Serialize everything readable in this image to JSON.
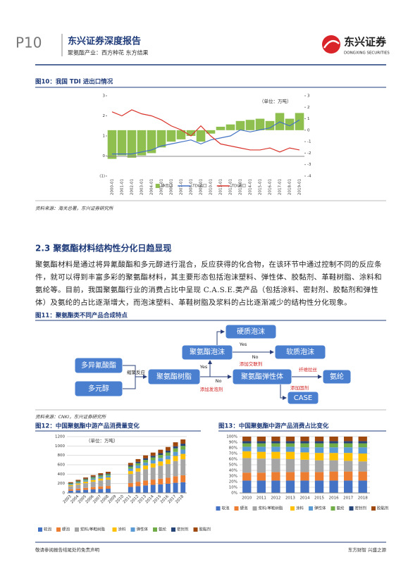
{
  "header": {
    "page": "P10",
    "title": "东兴证券深度报告",
    "subtitle": "聚氨酯产业：西方种花 东方结果",
    "logo": "东兴证券",
    "logo_en": "DONGXING SECURITIES"
  },
  "figure10": {
    "title": "图10：我国 TDI 进出口情况",
    "source": "资料来源：海关总署，东兴证券研究所"
  },
  "section": {
    "heading": "2.3 聚氨酯材料结构性分化日趋显现",
    "paragraph": "聚氨酯材料是通过将异氰酸酯和多元醇进行混合，反应获得的化合物，在该环节中通过控制不同的反应条件，就可以得到丰富多彩的聚氨酯材料，其主要形态包括泡沫塑料、弹性体、胶黏剂、革鞋树脂、涂料和氨纶等。目前，我国聚氨酯行业的消费占比中呈现 C.A.S.E.类产品（包括涂料、密封剂、胶黏剂和弹性体）及氨纶的占比逐渐增大，而泡沫塑料、革鞋树脂及浆料的占比逐渐减少的结构性分化现象。"
  },
  "figure11": {
    "title": "图11：聚氨酯类不同产品合成特点",
    "source": "资料来源：CNKI，东兴证券研究所",
    "nodes": [
      "多异氰酸酯",
      "多元醇",
      "聚氨酯树脂",
      "聚氨酯泡沫",
      "硬质泡沫",
      "软质泡沫",
      "聚氨酯弹性体",
      "氨纶",
      "CASE"
    ],
    "edges": [
      "缩聚反应",
      "Yes",
      "No",
      "Yes",
      "No",
      "添加交联剂",
      "添加发泡剂",
      "纤维拉丝",
      "添加固剂"
    ]
  },
  "figure12": {
    "title": "图12：中国聚氨酯中游产品消费量变化"
  },
  "figure13": {
    "title": "图13：中国聚氨酯中游产品消费占比变化"
  },
  "footer": {
    "left": "敬请参阅报告结尾处的免责声明",
    "right": "东方财智 兴盛之源"
  },
  "chart_data": [
    {
      "type": "line",
      "annotation": "（单位：万吨）",
      "categories": [
        "2000-01",
        "2001-01",
        "2002-01",
        "2003-01",
        "2004-01",
        "2005-01",
        "2006-01",
        "2007-01",
        "2008-01",
        "2009-01",
        "2010-01",
        "2011-01",
        "2012-01",
        "2013-01",
        "2014-01",
        "2015-01",
        "2016-01",
        "2017-01",
        "2018-01",
        "2019-01"
      ],
      "ylim": [
        -1,
        3
      ],
      "yticks": [
        {
          "value": -1,
          "label": "(1)"
        },
        0,
        1,
        2,
        3
      ],
      "y2lim": [
        -4,
        3
      ],
      "y2ticks": [
        3,
        2,
        1,
        0,
        -1,
        -2,
        -3,
        -4
      ],
      "legend": "bottom",
      "series": [
        {
          "name": "净出口",
          "type": "bar",
          "axis": "y2",
          "color": "#8fbf4f",
          "values": [
            -2.5,
            -2.2,
            -2.4,
            -2.2,
            -2.0,
            -1.5,
            -1.0,
            -0.8,
            -0.5,
            -1.0,
            -0.3,
            0.3,
            0.5,
            0.8,
            0.9,
            1.0,
            0.8,
            1.5,
            1.0,
            1.5
          ]
        },
        {
          "name": "TDI出口",
          "type": "line",
          "color": "#4472c4",
          "values": [
            0.1,
            0.1,
            0.1,
            0.2,
            0.3,
            0.5,
            0.6,
            0.7,
            0.8,
            0.6,
            0.8,
            0.9,
            1.0,
            1.3,
            1.2,
            1.3,
            1.4,
            1.7,
            1.5,
            1.8
          ]
        },
        {
          "name": "TDI进口",
          "type": "line",
          "color": "#d9342b",
          "values": [
            2.2,
            2.0,
            2.3,
            2.1,
            2.0,
            1.8,
            1.5,
            1.3,
            1.0,
            1.5,
            1.0,
            0.6,
            0.5,
            0.4,
            0.3,
            0.3,
            0.4,
            0.2,
            0.4,
            0.3
          ]
        }
      ]
    },
    {
      "type": "bar",
      "stacked": true,
      "annotation": "（单位：万吨）",
      "legend": "bottom",
      "categories": [
        "2003",
        "2004",
        "2005",
        "2006",
        "2007",
        "2008",
        "2009",
        "2010",
        "2011",
        "2012",
        "2013",
        "2014",
        "2015",
        "2016",
        "2017",
        "2018"
      ],
      "ylim": [
        0,
        1200
      ],
      "yticks": [
        0,
        200,
        400,
        600,
        800,
        1000,
        1200
      ],
      "grid": true,
      "series": [
        {
          "name": "软泡",
          "color": "#4472c4",
          "values": [
            46,
            56,
            66,
            76,
            84,
            90,
            null,
            null,
            128,
            144,
            160,
            172,
            184,
            196,
            216,
            228
          ]
        },
        {
          "name": "硬泡",
          "color": "#ed7d31",
          "values": [
            30,
            36,
            43,
            49,
            55,
            59,
            null,
            null,
            83,
            94,
            104,
            112,
            120,
            127,
            140,
            148
          ]
        },
        {
          "name": "浆料/革鞋树脂",
          "color": "#a5a5a5",
          "values": [
            69,
            84,
            99,
            114,
            126,
            135,
            null,
            null,
            192,
            216,
            240,
            258,
            276,
            294,
            324,
            342
          ]
        },
        {
          "name": "涂料",
          "color": "#ffc000",
          "values": [
            23,
            28,
            33,
            38,
            42,
            45,
            null,
            null,
            64,
            72,
            80,
            86,
            92,
            98,
            108,
            114
          ]
        },
        {
          "name": "弹性体",
          "color": "#5b9bd5",
          "values": [
            18,
            22,
            26,
            30,
            34,
            36,
            null,
            null,
            51,
            58,
            64,
            69,
            74,
            78,
            86,
            91
          ]
        },
        {
          "name": "氨纶",
          "color": "#70ad47",
          "values": [
            16,
            20,
            23,
            27,
            29,
            32,
            null,
            null,
            45,
            50,
            56,
            60,
            64,
            69,
            76,
            80
          ]
        },
        {
          "name": "密封剂",
          "color": "#264478",
          "values": [
            9,
            11,
            13,
            15,
            17,
            18,
            null,
            null,
            26,
            29,
            32,
            34,
            37,
            39,
            43,
            46
          ]
        },
        {
          "name": "胶黏剂",
          "color": "#9e480e",
          "values": [
            18,
            22,
            26,
            30,
            34,
            36,
            null,
            null,
            51,
            58,
            64,
            69,
            74,
            78,
            86,
            91
          ]
        }
      ]
    },
    {
      "type": "bar",
      "stacked": true,
      "legend": "bottom",
      "grid": true,
      "categories": [
        "2010",
        "2011",
        "2012",
        "2013",
        "2014",
        "2015",
        "2016",
        "2017",
        "2018"
      ],
      "ylim": [
        0,
        100
      ],
      "yticks": [
        {
          "value": 0,
          "label": "0%"
        },
        {
          "value": 10,
          "label": "10%"
        },
        {
          "value": 20,
          "label": "20%"
        },
        {
          "value": 30,
          "label": "30%"
        },
        {
          "value": 40,
          "label": "40%"
        },
        {
          "value": 50,
          "label": "50%"
        },
        {
          "value": 60,
          "label": "60%"
        },
        {
          "value": 70,
          "label": "70%"
        },
        {
          "value": 80,
          "label": "80%"
        },
        {
          "value": 90,
          "label": "90%"
        },
        {
          "value": 100,
          "label": "100%"
        }
      ],
      "series": [
        {
          "name": "软泡",
          "color": "#4472c4",
          "values": [
            22,
            22,
            22,
            22,
            22,
            22,
            22,
            22,
            22
          ]
        },
        {
          "name": "硬泡",
          "color": "#ed7d31",
          "values": [
            14,
            14,
            15,
            15,
            15,
            15,
            16,
            16,
            16
          ]
        },
        {
          "name": "浆料/革鞋树脂",
          "color": "#a5a5a5",
          "values": [
            26,
            25,
            24,
            23,
            22,
            21,
            20,
            19,
            18
          ]
        },
        {
          "name": "涂料",
          "color": "#ffc000",
          "values": [
            12,
            12,
            12,
            13,
            13,
            13,
            13,
            14,
            14
          ]
        },
        {
          "name": "弹性体",
          "color": "#5b9bd5",
          "values": [
            8,
            9,
            9,
            9,
            9,
            10,
            10,
            10,
            11
          ]
        },
        {
          "name": "氨纶",
          "color": "#70ad47",
          "values": [
            6,
            6,
            6,
            6,
            7,
            7,
            7,
            7,
            7
          ]
        },
        {
          "name": "密封剂",
          "color": "#264478",
          "values": [
            4,
            4,
            4,
            4,
            4,
            4,
            4,
            4,
            4
          ]
        },
        {
          "name": "胶黏剂",
          "color": "#9e480e",
          "values": [
            8,
            8,
            8,
            8,
            8,
            8,
            8,
            8,
            8
          ]
        }
      ]
    }
  ]
}
